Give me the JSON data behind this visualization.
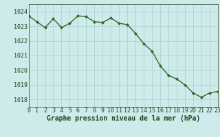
{
  "x": [
    0,
    1,
    2,
    3,
    4,
    5,
    6,
    7,
    8,
    9,
    10,
    11,
    12,
    13,
    14,
    15,
    16,
    17,
    18,
    19,
    20,
    21,
    22,
    23
  ],
  "y": [
    1023.7,
    1023.3,
    1022.9,
    1023.5,
    1022.9,
    1023.2,
    1023.7,
    1023.65,
    1023.3,
    1023.25,
    1023.55,
    1023.2,
    1023.1,
    1022.5,
    1021.8,
    1021.3,
    1020.3,
    1019.65,
    1019.4,
    1019.0,
    1018.45,
    1018.15,
    1018.45,
    1018.55
  ],
  "line_color": "#2d6a2d",
  "marker": "D",
  "marker_size": 2.0,
  "line_width": 1.0,
  "xlim": [
    0,
    23
  ],
  "ylim": [
    1017.5,
    1024.5
  ],
  "yticks": [
    1018,
    1019,
    1020,
    1021,
    1022,
    1023,
    1024
  ],
  "xticks": [
    0,
    1,
    2,
    3,
    4,
    5,
    6,
    7,
    8,
    9,
    10,
    11,
    12,
    13,
    14,
    15,
    16,
    17,
    18,
    19,
    20,
    21,
    22,
    23
  ],
  "xlabel": "Graphe pression niveau de la mer (hPa)",
  "bg_color": "#ceeaea",
  "grid_color": "#aacece",
  "tick_label_color": "#1a4a1a",
  "axis_label_color": "#1a4a1a",
  "xlabel_fontsize": 7.0,
  "tick_fontsize": 6.0,
  "fig_width": 3.2,
  "fig_height": 2.0,
  "dpi": 100
}
